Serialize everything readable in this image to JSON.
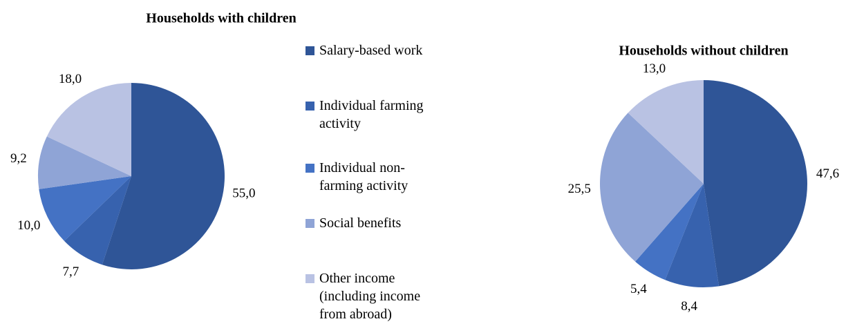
{
  "chart_data": [
    {
      "type": "pie",
      "title": "Households with children",
      "categories": [
        "Salary-based work",
        "Individual farming activity",
        "Individual non-farming activity",
        "Social benefits",
        "Other income (including income from abroad)"
      ],
      "values": [
        55.0,
        7.7,
        10.0,
        9.2,
        18.0
      ],
      "value_labels": [
        "55,0",
        "7,7",
        "10,0",
        "9,2",
        "18,0"
      ],
      "colors": [
        "#2F5597",
        "#3762AE",
        "#4472C4",
        "#8FA4D6",
        "#B9C2E3"
      ],
      "legend": "between"
    },
    {
      "type": "pie",
      "title": "Households without children",
      "categories": [
        "Salary-based work",
        "Individual farming activity",
        "Individual non-farming activity",
        "Social benefits",
        "Other income (including income from abroad)"
      ],
      "values": [
        47.6,
        8.4,
        5.4,
        25.5,
        13.0
      ],
      "value_labels": [
        "47,6",
        "8,4",
        "5,4",
        "25,5",
        "13,0"
      ],
      "colors": [
        "#2F5597",
        "#3762AE",
        "#4472C4",
        "#8FA4D6",
        "#B9C2E3"
      ]
    }
  ]
}
